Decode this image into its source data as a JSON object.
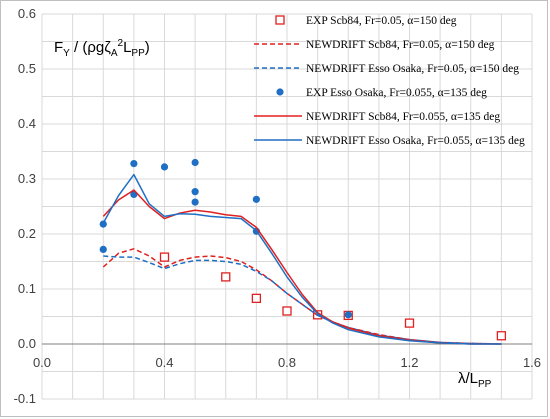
{
  "chart_data": {
    "type": "scatter",
    "title": "",
    "ylabel_parts": {
      "pre": "F",
      "sub1": "Y",
      "mid": " / (ρgζ",
      "sub2": "A",
      "sup": "2",
      "post": "L",
      "sub3": "PP",
      "end": ")"
    },
    "xlabel_parts": {
      "pre": "λ/L",
      "sub": "PP"
    },
    "xlim": [
      0.0,
      1.6
    ],
    "ylim": [
      -0.1,
      0.6
    ],
    "xticks": [
      "0.0",
      "0.4",
      "0.8",
      "1.2",
      "1.6"
    ],
    "xtick_values": [
      0.0,
      0.4,
      0.8,
      1.2,
      1.6
    ],
    "yticks": [
      "-0.1",
      "0.0",
      "0.1",
      "0.2",
      "0.3",
      "0.4",
      "0.5",
      "0.6"
    ],
    "ytick_values": [
      -0.1,
      0.0,
      0.1,
      0.2,
      0.3,
      0.4,
      0.5,
      0.6
    ],
    "grid": true,
    "legend_position": "top-right",
    "series": [
      {
        "name": "EXP Scb84, Fr=0.05, α=150 deg",
        "kind": "marker-square",
        "color": "#e02020",
        "x": [
          0.4,
          0.6,
          0.7,
          0.8,
          0.9,
          1.0,
          1.2,
          1.5
        ],
        "y": [
          0.158,
          0.122,
          0.083,
          0.06,
          0.053,
          0.052,
          0.038,
          0.015
        ]
      },
      {
        "name": "NEWDRIFT Scb84, Fr=0.05, α=150 deg",
        "kind": "dash",
        "color": "#e02020",
        "x": [
          0.2,
          0.25,
          0.3,
          0.35,
          0.4,
          0.45,
          0.5,
          0.55,
          0.6,
          0.65,
          0.7,
          0.75,
          0.8,
          0.85,
          0.9,
          0.95,
          1.0,
          1.1,
          1.2,
          1.3,
          1.4,
          1.5
        ],
        "y": [
          0.14,
          0.165,
          0.173,
          0.16,
          0.14,
          0.152,
          0.158,
          0.16,
          0.157,
          0.15,
          0.135,
          0.115,
          0.092,
          0.072,
          0.052,
          0.04,
          0.03,
          0.017,
          0.008,
          0.003,
          0.001,
          0.0
        ]
      },
      {
        "name": "NEWDRIFT Esso Osaka, Fr=0.05, α=150 deg",
        "kind": "dash",
        "color": "#1f6fc4",
        "x": [
          0.2,
          0.25,
          0.3,
          0.35,
          0.4,
          0.45,
          0.5,
          0.55,
          0.6,
          0.65,
          0.7,
          0.75,
          0.8,
          0.85,
          0.9,
          0.95,
          1.0,
          1.1,
          1.2,
          1.3,
          1.4,
          1.5
        ],
        "y": [
          0.16,
          0.158,
          0.158,
          0.148,
          0.137,
          0.146,
          0.152,
          0.152,
          0.15,
          0.145,
          0.132,
          0.115,
          0.092,
          0.072,
          0.052,
          0.04,
          0.03,
          0.016,
          0.008,
          0.003,
          0.001,
          0.0
        ]
      },
      {
        "name": "EXP Esso Osaka, Fr=0.055, α=135 deg",
        "kind": "marker-circle",
        "color": "#1f6fc4",
        "x": [
          0.2,
          0.2,
          0.3,
          0.3,
          0.4,
          0.5,
          0.5,
          0.5,
          0.7,
          0.7,
          1.0
        ],
        "y": [
          0.218,
          0.172,
          0.328,
          0.272,
          0.322,
          0.33,
          0.277,
          0.258,
          0.263,
          0.205,
          0.053
        ]
      },
      {
        "name": "NEWDRIFT Scb84, Fr=0.055, α=135 deg",
        "kind": "solid",
        "color": "#e02020",
        "x": [
          0.2,
          0.25,
          0.3,
          0.35,
          0.4,
          0.45,
          0.5,
          0.55,
          0.6,
          0.65,
          0.7,
          0.75,
          0.8,
          0.85,
          0.9,
          0.95,
          1.0,
          1.1,
          1.2,
          1.3,
          1.4,
          1.5
        ],
        "y": [
          0.232,
          0.262,
          0.28,
          0.25,
          0.228,
          0.238,
          0.243,
          0.24,
          0.235,
          0.232,
          0.212,
          0.172,
          0.13,
          0.09,
          0.057,
          0.04,
          0.029,
          0.015,
          0.007,
          0.002,
          0.0,
          0.0
        ]
      },
      {
        "name": "NEWDRIFT Esso Osaka, Fr=0.055, α=135 deg",
        "kind": "solid",
        "color": "#1f6fc4",
        "x": [
          0.2,
          0.25,
          0.3,
          0.35,
          0.4,
          0.45,
          0.5,
          0.55,
          0.6,
          0.65,
          0.7,
          0.75,
          0.8,
          0.85,
          0.9,
          0.95,
          1.0,
          1.1,
          1.2,
          1.3,
          1.4,
          1.5
        ],
        "y": [
          0.22,
          0.27,
          0.308,
          0.255,
          0.232,
          0.237,
          0.236,
          0.232,
          0.23,
          0.228,
          0.206,
          0.165,
          0.122,
          0.085,
          0.055,
          0.038,
          0.026,
          0.013,
          0.006,
          0.002,
          0.0,
          0.0
        ]
      }
    ]
  }
}
